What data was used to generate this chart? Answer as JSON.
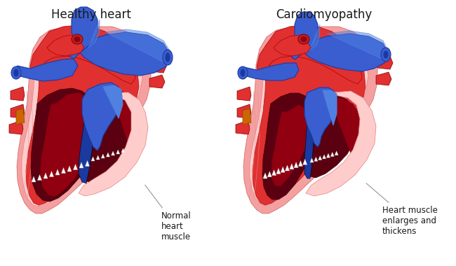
{
  "title_left": "Healthy heart",
  "title_right": "Cardiomyopathy",
  "label_left_text": "Normal\nheart\nmuscle",
  "label_right_text": "Heart muscle\nenlarges and\nthickens",
  "bg_color": "#ffffff",
  "pink_outer": "#F5A0A0",
  "pink_mid": "#F08080",
  "pink_light": "#FFCCCC",
  "red_bright": "#E03030",
  "red_mid": "#C02020",
  "red_dark": "#900010",
  "red_very_dark": "#5A0010",
  "blue_bright": "#5080E0",
  "blue_mid": "#3A5ED0",
  "blue_dark": "#1A3AA0",
  "dark_navy": "#0A1A6A",
  "orange_accent": "#CC6600",
  "white": "#FFFFFF",
  "label_line_color": "#888888",
  "text_color": "#1A1A1A",
  "title_fontsize": 12,
  "label_fontsize": 8.5
}
